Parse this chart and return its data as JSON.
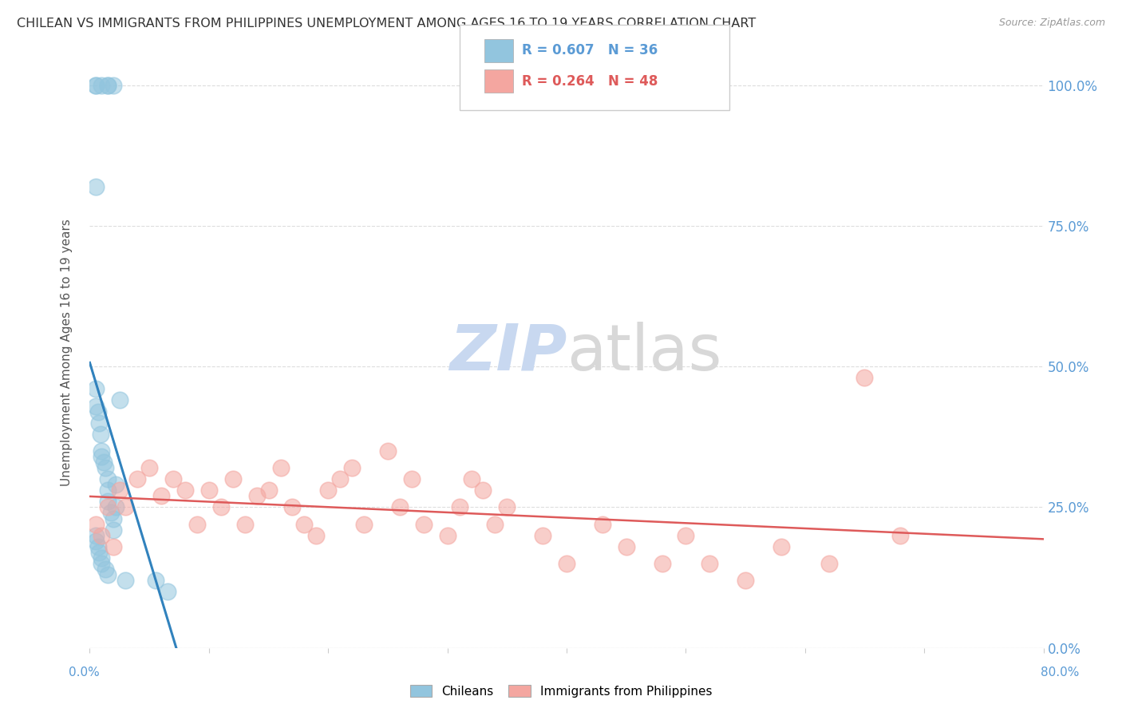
{
  "title": "CHILEAN VS IMMIGRANTS FROM PHILIPPINES UNEMPLOYMENT AMONG AGES 16 TO 19 YEARS CORRELATION CHART",
  "source": "Source: ZipAtlas.com",
  "ylabel": "Unemployment Among Ages 16 to 19 years",
  "xlim": [
    0.0,
    0.8
  ],
  "ylim": [
    0.0,
    1.05
  ],
  "ytick_values": [
    0.0,
    0.25,
    0.5,
    0.75,
    1.0
  ],
  "legend_blue_r": "0.607",
  "legend_blue_n": "36",
  "legend_pink_r": "0.264",
  "legend_pink_n": "48",
  "chilean_color": "#92c5de",
  "philippine_color": "#f4a6a0",
  "trendline_blue_color": "#3182bd",
  "trendline_pink_color": "#de5a5a",
  "background_color": "#ffffff",
  "grid_color": "#dddddd",
  "title_color": "#333333",
  "watermark_zip_color": "#c8d8f0",
  "watermark_atlas_color": "#d8d8d8",
  "blue_scatter_x": [
    0.005,
    0.005,
    0.01,
    0.015,
    0.015,
    0.02,
    0.005,
    0.005,
    0.005,
    0.007,
    0.008,
    0.009,
    0.01,
    0.01,
    0.012,
    0.013,
    0.015,
    0.015,
    0.015,
    0.018,
    0.02,
    0.02,
    0.022,
    0.022,
    0.025,
    0.005,
    0.005,
    0.007,
    0.008,
    0.01,
    0.01,
    0.013,
    0.015,
    0.03,
    0.055,
    0.065
  ],
  "blue_scatter_y": [
    1.0,
    1.0,
    1.0,
    1.0,
    1.0,
    1.0,
    0.82,
    0.46,
    0.43,
    0.42,
    0.4,
    0.38,
    0.35,
    0.34,
    0.33,
    0.32,
    0.3,
    0.28,
    0.26,
    0.24,
    0.23,
    0.21,
    0.29,
    0.25,
    0.44,
    0.2,
    0.19,
    0.18,
    0.17,
    0.16,
    0.15,
    0.14,
    0.13,
    0.12,
    0.12,
    0.1
  ],
  "pink_scatter_x": [
    0.005,
    0.01,
    0.015,
    0.02,
    0.025,
    0.03,
    0.04,
    0.05,
    0.06,
    0.07,
    0.08,
    0.09,
    0.1,
    0.11,
    0.12,
    0.13,
    0.14,
    0.15,
    0.16,
    0.17,
    0.18,
    0.19,
    0.2,
    0.21,
    0.22,
    0.23,
    0.25,
    0.26,
    0.27,
    0.28,
    0.3,
    0.31,
    0.32,
    0.33,
    0.34,
    0.35,
    0.38,
    0.4,
    0.43,
    0.45,
    0.48,
    0.5,
    0.52,
    0.55,
    0.58,
    0.62,
    0.65,
    0.68
  ],
  "pink_scatter_y": [
    0.22,
    0.2,
    0.25,
    0.18,
    0.28,
    0.25,
    0.3,
    0.32,
    0.27,
    0.3,
    0.28,
    0.22,
    0.28,
    0.25,
    0.3,
    0.22,
    0.27,
    0.28,
    0.32,
    0.25,
    0.22,
    0.2,
    0.28,
    0.3,
    0.32,
    0.22,
    0.35,
    0.25,
    0.3,
    0.22,
    0.2,
    0.25,
    0.3,
    0.28,
    0.22,
    0.25,
    0.2,
    0.15,
    0.22,
    0.18,
    0.15,
    0.2,
    0.15,
    0.12,
    0.18,
    0.15,
    0.48,
    0.2
  ]
}
